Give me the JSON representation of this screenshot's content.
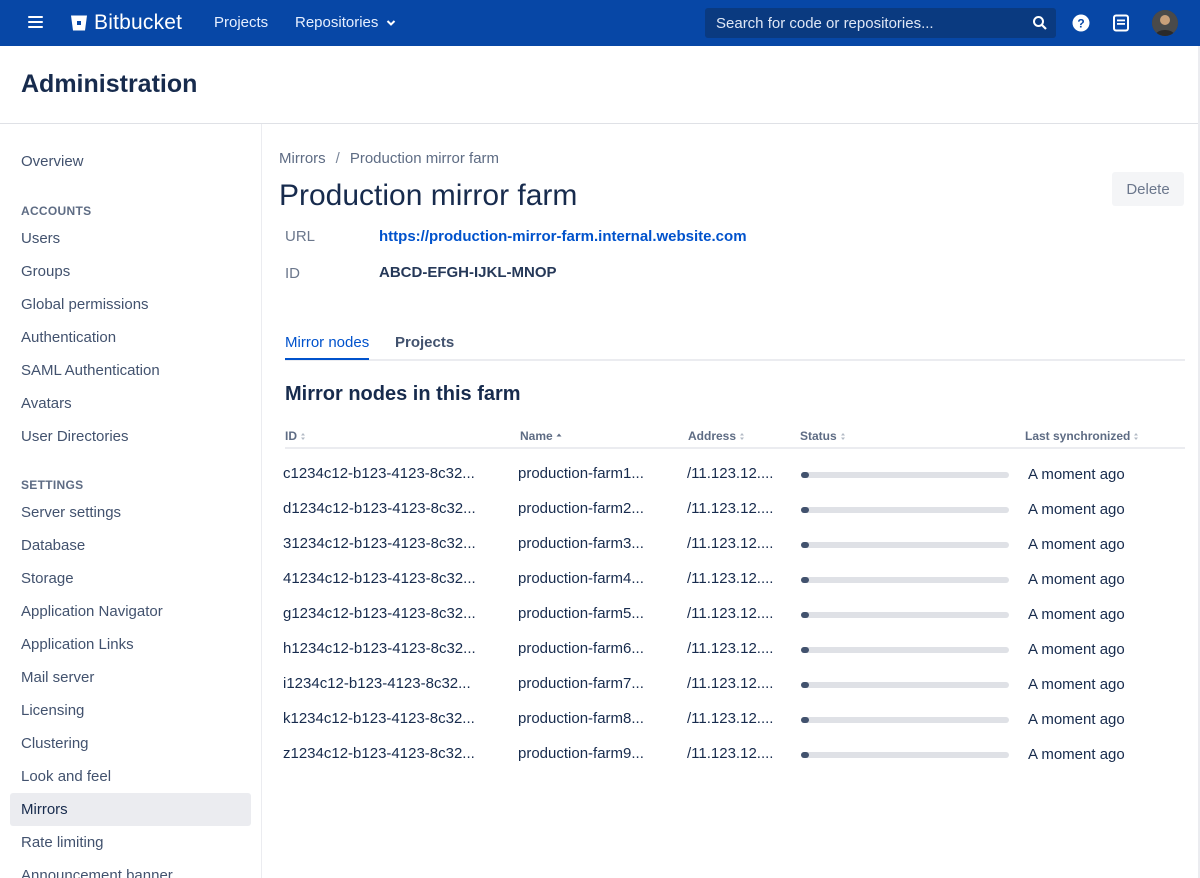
{
  "topnav": {
    "brand": "Bitbucket",
    "projects_label": "Projects",
    "repositories_label": "Repositories",
    "search_placeholder": "Search for code or repositories...",
    "bg_color": "#0747a6"
  },
  "admin": {
    "title": "Administration"
  },
  "sidebar": {
    "overview": "Overview",
    "accounts_heading": "ACCOUNTS",
    "accounts": [
      "Users",
      "Groups",
      "Global permissions",
      "Authentication",
      "SAML Authentication",
      "Avatars",
      "User Directories"
    ],
    "settings_heading": "SETTINGS",
    "settings": [
      "Server settings",
      "Database",
      "Storage",
      "Application Navigator",
      "Application Links",
      "Mail server",
      "Licensing",
      "Clustering",
      "Look and feel",
      "Mirrors",
      "Rate limiting",
      "Announcement banner"
    ],
    "active_item": "Mirrors"
  },
  "breadcrumb": {
    "parent": "Mirrors",
    "separator": "/",
    "current": "Production mirror farm"
  },
  "page": {
    "title": "Production mirror farm",
    "delete_label": "Delete",
    "url_label": "URL",
    "url_value": "https://production-mirror-farm.internal.website.com",
    "id_label": "ID",
    "id_value": "ABCD-EFGH-IJKL-MNOP"
  },
  "tabs": {
    "mirror_nodes": "Mirror nodes",
    "projects": "Projects",
    "active": "Mirror nodes"
  },
  "table": {
    "title": "Mirror nodes in this farm",
    "columns": [
      "ID",
      "Name",
      "Address",
      "Status",
      "Last synchronized"
    ],
    "sorted_column": "Name",
    "rows": [
      {
        "id": "c1234c12-b123-4123-8c32...",
        "name": "production-farm1...",
        "address": "/11.123.12....",
        "status_progress": 0.03,
        "last_sync": "A moment ago"
      },
      {
        "id": "d1234c12-b123-4123-8c32...",
        "name": "production-farm2...",
        "address": "/11.123.12....",
        "status_progress": 0.03,
        "last_sync": "A moment ago"
      },
      {
        "id": "31234c12-b123-4123-8c32...",
        "name": "production-farm3...",
        "address": "/11.123.12....",
        "status_progress": 0.03,
        "last_sync": "A moment ago"
      },
      {
        "id": "41234c12-b123-4123-8c32...",
        "name": "production-farm4...",
        "address": "/11.123.12....",
        "status_progress": 0.03,
        "last_sync": "A moment ago"
      },
      {
        "id": "g1234c12-b123-4123-8c32...",
        "name": "production-farm5...",
        "address": "/11.123.12....",
        "status_progress": 0.03,
        "last_sync": "A moment ago"
      },
      {
        "id": "h1234c12-b123-4123-8c32...",
        "name": "production-farm6...",
        "address": "/11.123.12....",
        "status_progress": 0.03,
        "last_sync": "A moment ago"
      },
      {
        "id": "i1234c12-b123-4123-8c32...",
        "name": "production-farm7...",
        "address": "/11.123.12....",
        "status_progress": 0.03,
        "last_sync": "A moment ago"
      },
      {
        "id": "k1234c12-b123-4123-8c32...",
        "name": "production-farm8...",
        "address": "/11.123.12....",
        "status_progress": 0.03,
        "last_sync": "A moment ago"
      },
      {
        "id": "z1234c12-b123-4123-8c32...",
        "name": "production-farm9...",
        "address": "/11.123.12....",
        "status_progress": 0.03,
        "last_sync": "A moment ago"
      }
    ]
  }
}
